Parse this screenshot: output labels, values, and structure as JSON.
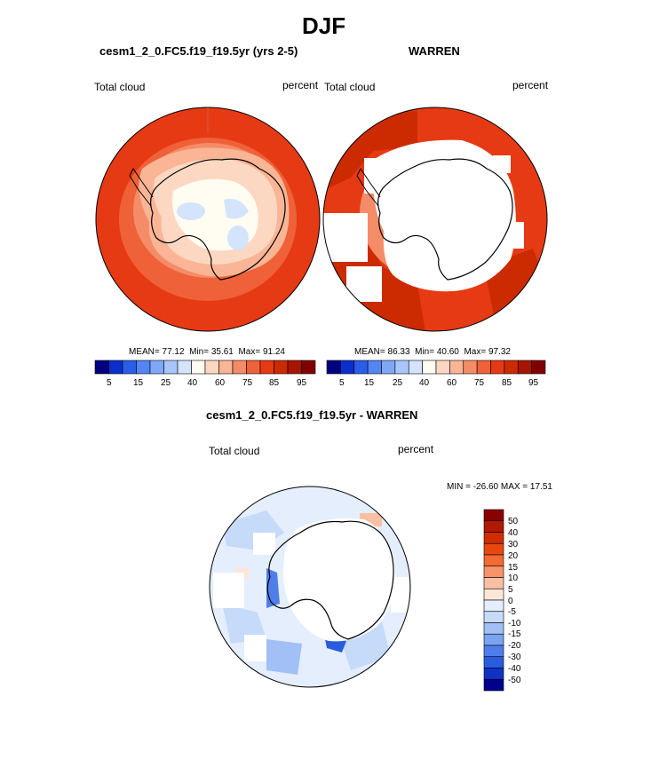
{
  "season": "DJF",
  "panels": [
    {
      "title": "cesm1_2_0.FC5.f19_f19.5yr (yrs 2-5)",
      "variable": "Total cloud",
      "units": "percent",
      "mean_label": "MEAN=",
      "mean": "77.12",
      "min_label": "Min=",
      "min": "35.61",
      "max_label": "Max=",
      "max": "91.24"
    },
    {
      "title": "WARREN",
      "variable": "Total cloud",
      "units": "percent",
      "mean_label": "MEAN=",
      "mean": "86.33",
      "min_label": "Min=",
      "min": "40.60",
      "max_label": "Max=",
      "max": "97.32"
    }
  ],
  "diff_panel": {
    "title": "cesm1_2_0.FC5.f19_f19.5yr - WARREN",
    "variable": "Total cloud",
    "units": "percent",
    "minmax": "MIN = -26.60 MAX =  17.51"
  },
  "abs_colorbar": {
    "colors": [
      "#000080",
      "#0c2fcc",
      "#2a5ee8",
      "#5585f2",
      "#7ea7f7",
      "#a8c6fb",
      "#d4e4fd",
      "#fffcf2",
      "#fcd8c2",
      "#f9b596",
      "#f58c68",
      "#ef6139",
      "#e63a14",
      "#cc2a00",
      "#a61500",
      "#800000"
    ],
    "labels": [
      "5",
      "15",
      "25",
      "40",
      "60",
      "75",
      "85",
      "95"
    ]
  },
  "diff_colorbar": {
    "colors": [
      "#8b0000",
      "#b01a00",
      "#d12c00",
      "#e8480f",
      "#f46a33",
      "#f7946b",
      "#fac0a3",
      "#fde6d8",
      "#e4eefc",
      "#c6daf9",
      "#a2c0f5",
      "#7aa3f1",
      "#4f7eeb",
      "#2a5ce0",
      "#0e33c2",
      "#00008b"
    ],
    "labels": [
      "50",
      "40",
      "30",
      "20",
      "15",
      "10",
      "5",
      "0",
      "-5",
      "-10",
      "-15",
      "-20",
      "-30",
      "-40",
      "-50"
    ]
  }
}
